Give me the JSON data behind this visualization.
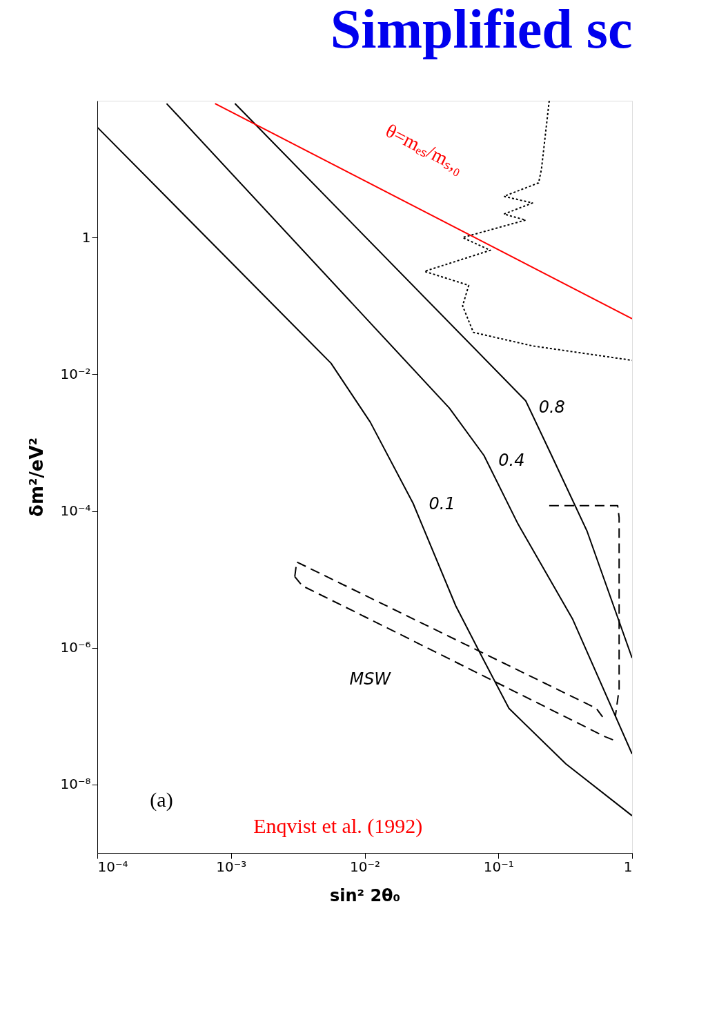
{
  "chart_data": {
    "type": "line",
    "title": "Simplified sc",
    "xlabel": "sin² 2θ₀",
    "ylabel": "δm²/eV²",
    "log": "xy",
    "grid": false,
    "marker": "none",
    "xlim": [
      0.0001,
      1
    ],
    "ylim": [
      1e-09,
      100
    ],
    "xticks": [
      {
        "value": 0.0001,
        "label": "10⁻⁴"
      },
      {
        "value": 0.001,
        "label": "10⁻³"
      },
      {
        "value": 0.01,
        "label": "10⁻²"
      },
      {
        "value": 0.1,
        "label": "10⁻¹"
      },
      1
    ],
    "yticks": [
      {
        "value": 1e-08,
        "label": "10⁻⁸"
      },
      {
        "value": 1e-06,
        "label": "10⁻⁶"
      },
      {
        "value": 0.0001,
        "label": "10⁻⁴"
      },
      {
        "value": 0.01,
        "label": "10⁻²"
      },
      1
    ],
    "series": [
      {
        "color": "#000000",
        "line_style": "solid",
        "x": [
          0.0001,
          0.0056,
          0.011,
          0.023,
          0.048,
          0.078,
          0.12,
          0.32,
          1
        ],
        "values": [
          41,
          0.0145,
          0.002,
          0.00013,
          4.1e-06,
          6.5e-07,
          1.3e-07,
          2e-08,
          3.5e-09
        ]
      },
      {
        "color": "#000000",
        "line_style": "solid",
        "x": [
          0.00033,
          0.043,
          0.078,
          0.14,
          0.36,
          1
        ],
        "values": [
          91,
          0.0032,
          0.00065,
          6.5e-05,
          2.6e-06,
          2.8e-08
        ]
      },
      {
        "color": "#000000",
        "line_style": "solid",
        "x": [
          0.00107,
          0.16,
          0.25,
          0.46,
          1
        ],
        "values": [
          91,
          0.0041,
          0.00065,
          5.1e-05,
          7.1e-07
        ]
      },
      {
        "color": "#000000",
        "line_style": "dotted",
        "x": [
          0.24,
          0.21,
          0.2,
          0.11,
          0.18,
          0.11,
          0.16,
          0.054,
          0.087,
          0.028,
          0.06,
          0.054,
          0.065,
          0.18,
          1
        ],
        "values": [
          100,
          10,
          6.3,
          4,
          3.2,
          2.2,
          1.8,
          1.0,
          0.65,
          0.32,
          0.2,
          0.1,
          0.041,
          0.026,
          0.016
        ]
      },
      {
        "color": "#000000",
        "line_style": "dashed",
        "x": [
          0.003,
          0.0031,
          0.54,
          0.62
        ],
        "values": [
          1.1e-05,
          1.8e-05,
          1.3e-07,
          9e-08
        ]
      },
      {
        "color": "#000000",
        "line_style": "dashed",
        "x": [
          0.003,
          0.0034,
          0.011,
          0.63,
          0.72
        ],
        "values": [
          1.1e-05,
          8.1e-06,
          2.6e-06,
          5e-08,
          4.5e-08
        ]
      },
      {
        "color": "#000000",
        "line_style": "dashed",
        "x": [
          0.24,
          0.78,
          0.8,
          0.8,
          0.75
        ],
        "values": [
          0.00012,
          0.00012,
          8e-05,
          2.5e-07,
          1e-07
        ]
      },
      {
        "name": "θ=mₑₛ/mₛ,₀",
        "color": "#ff0000",
        "line_style": "solid",
        "x": [
          0.00076,
          1
        ],
        "values": [
          91,
          0.065
        ]
      }
    ],
    "annotations": [
      {
        "text": "0.8",
        "x": 0.16,
        "y": 0.0041
      },
      {
        "text": "0.4",
        "x": 0.078,
        "y": 0.00065
      },
      {
        "text": "0.1",
        "x": 0.023,
        "y": 0.00013
      },
      "MSW",
      "(a)",
      "Enqvist  et al. (1992)"
    ]
  }
}
